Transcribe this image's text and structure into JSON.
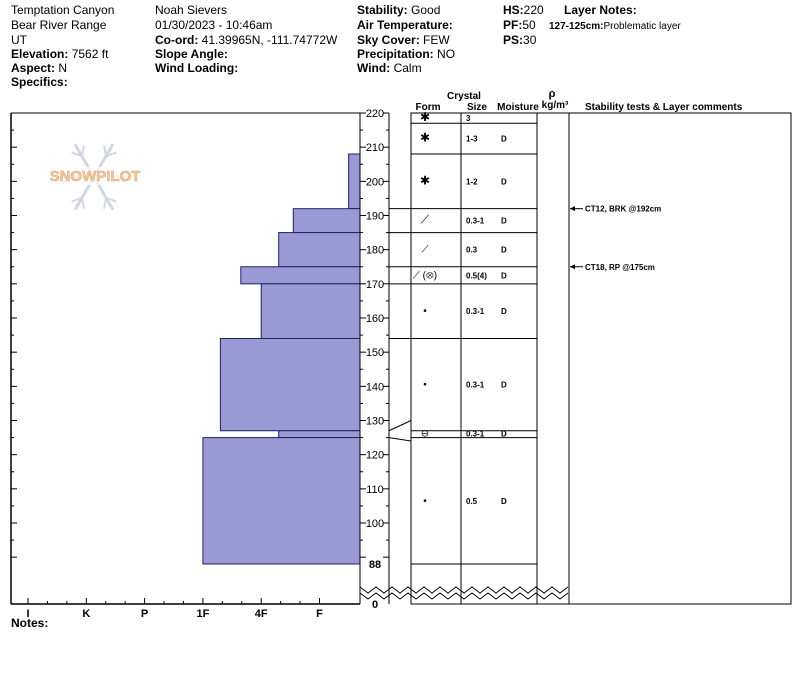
{
  "header": {
    "location": "Temptation Canyon",
    "range": "Bear River Range",
    "state": "UT",
    "elevation_label": "Elevation:",
    "elevation": "7562 ft",
    "aspect_label": "Aspect:",
    "aspect": "N",
    "specifics_label": "Specifics:",
    "observer": "Noah Sievers",
    "datetime": "01/30/2023 - 10:46am",
    "coord_label": "Co-ord:",
    "coord": "41.39965N, -111.74772W",
    "slope_label": "Slope Angle:",
    "slope": "",
    "wind_loading_label": "Wind Loading:",
    "wind_loading": "",
    "stability_label": "Stability:",
    "stability": "Good",
    "air_temp_label": "Air Temperature:",
    "air_temp": "",
    "sky_label": "Sky Cover:",
    "sky": "FEW",
    "precip_label": "Precipitation:",
    "precip": "NO",
    "wind_label": "Wind:",
    "wind": "Calm",
    "hs_label": "HS:",
    "hs": "220",
    "pf_label": "PF:",
    "pf": "50",
    "ps_label": "PS:",
    "ps": "30",
    "layer_notes_label": "Layer Notes:",
    "layer_note": "127-125cm:",
    "layer_note_text": "Problematic layer"
  },
  "watermark": "SNOWPILOT",
  "notes_label": "Notes:",
  "columns": {
    "crystal": "Crystal",
    "form": "Form",
    "size": "Size",
    "moisture": "Moisture",
    "rho": "ρ",
    "density_unit": "kg/m³",
    "comments": "Stability tests & Layer comments"
  },
  "chart_data": {
    "type": "bar",
    "title": "",
    "hardness_scale": [
      "I",
      "K",
      "P",
      "1F",
      "4F",
      "F"
    ],
    "depth_ticks": [
      "220",
      "210",
      "200",
      "190",
      "180",
      "170",
      "160",
      "150",
      "140",
      "130",
      "120",
      "110",
      "100",
      "88",
      "0"
    ],
    "depth_range_cm": [
      88,
      220
    ],
    "hardness_profile": [
      {
        "top": 220,
        "bottom": 208,
        "hardness": 5.7
      },
      {
        "top": 208,
        "bottom": 192,
        "hardness": 5.5
      },
      {
        "top": 192,
        "bottom": 185,
        "hardness": 4.55
      },
      {
        "top": 185,
        "bottom": 175,
        "hardness": 4.3
      },
      {
        "top": 175,
        "bottom": 170,
        "hardness": 3.65
      },
      {
        "top": 170,
        "bottom": 154,
        "hardness": 4.0
      },
      {
        "top": 154,
        "bottom": 127,
        "hardness": 3.3
      },
      {
        "top": 127,
        "bottom": 125,
        "hardness": 4.3
      },
      {
        "top": 125,
        "bottom": 88,
        "hardness": 3.0
      }
    ],
    "grain_layers": [
      {
        "top": 220,
        "bottom": 217,
        "symbol": "✱",
        "size": "3",
        "moisture": ""
      },
      {
        "top": 217,
        "bottom": 208,
        "symbol": "✱",
        "size": "1-3",
        "moisture": "D"
      },
      {
        "top": 208,
        "bottom": 192,
        "symbol": "✱",
        "size": "1-2",
        "moisture": "D"
      },
      {
        "top": 192,
        "bottom": 185,
        "symbol": "⟋",
        "size": "0.3-1",
        "moisture": "D"
      },
      {
        "top": 185,
        "bottom": 175,
        "symbol": "⟋",
        "size": "0.3",
        "moisture": "D"
      },
      {
        "top": 175,
        "bottom": 170,
        "symbol": "⟋ (⊗)",
        "size": "0.5(4)",
        "moisture": "D"
      },
      {
        "top": 170,
        "bottom": 154,
        "symbol": "•",
        "size": "0.3-1",
        "moisture": "D"
      },
      {
        "top": 154,
        "bottom": 127,
        "symbol": "•",
        "size": "0.3-1",
        "moisture": "D"
      },
      {
        "top": 127,
        "bottom": 125,
        "symbol": "⊖",
        "size": "0.3-1",
        "moisture": "D"
      },
      {
        "top": 125,
        "bottom": 88,
        "symbol": "•",
        "size": "0.5",
        "moisture": "D"
      }
    ],
    "stability_tests": [
      {
        "depth": 192,
        "label": "CT12, BRK @192cm"
      },
      {
        "depth": 175,
        "label": "CT18, RP @175cm"
      }
    ],
    "colors": {
      "bar_fill": "#9999d6",
      "bar_stroke": "#22225a"
    }
  }
}
